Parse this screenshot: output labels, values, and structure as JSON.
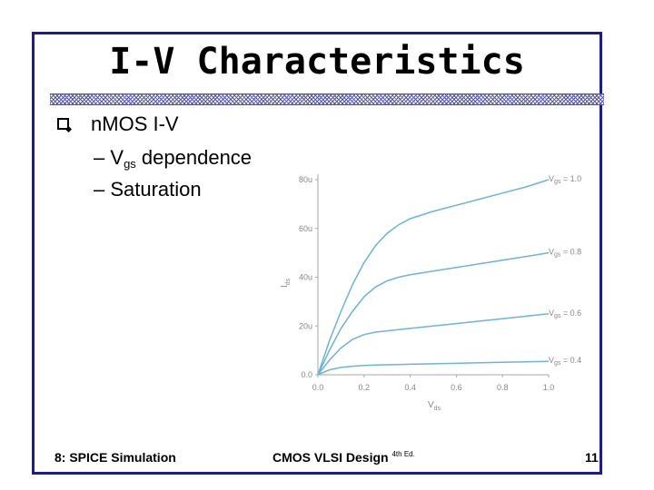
{
  "slide": {
    "title": "I-V Characteristics",
    "bullet1": "n",
    "bullet1_mos": "MOS I-V",
    "bullet2_dash": "–",
    "bullet2_v": "V",
    "bullet2_sub": "gs",
    "bullet2_rest": "dependence",
    "bullet3": "– Saturation"
  },
  "footer": {
    "left": "8: SPICE Simulation",
    "center": "CMOS VLSI Design",
    "center_sup": "4th Ed.",
    "right": "11"
  },
  "colors": {
    "frame": "#1a1aa0",
    "curve": "#6ab5d8",
    "tick": "#888888"
  },
  "chart_data": {
    "type": "line",
    "xlabel_main": "V",
    "xlabel_sub": "ds",
    "ylabel_main": "I",
    "ylabel_sub": "ds",
    "xlim": [
      0,
      1.0
    ],
    "ylim": [
      0,
      80
    ],
    "x_ticks": [
      "0.0",
      "0.2",
      "0.4",
      "0.6",
      "0.8",
      "1.0"
    ],
    "y_ticks": [
      "0.0",
      "20u",
      "40u",
      "60u",
      "80u"
    ],
    "x": [
      0.0,
      0.05,
      0.1,
      0.15,
      0.2,
      0.25,
      0.3,
      0.35,
      0.4,
      0.5,
      0.6,
      0.7,
      0.8,
      0.9,
      1.0
    ],
    "series": [
      {
        "name": "Vgs = 1.0",
        "label_main": "V",
        "label_sub": "gs",
        "label_rest": " = 1.0",
        "values": [
          0,
          14,
          26,
          37,
          46,
          53,
          58,
          61.5,
          64,
          67,
          69.5,
          72,
          74.5,
          77,
          80
        ]
      },
      {
        "name": "Vgs = 0.8",
        "label_main": "V",
        "label_sub": "gs",
        "label_rest": " = 0.8",
        "values": [
          0,
          10,
          19,
          26,
          32,
          36,
          38.5,
          40,
          41,
          42.5,
          44,
          45.5,
          47,
          48.5,
          50
        ]
      },
      {
        "name": "Vgs = 0.6",
        "label_main": "V",
        "label_sub": "gs",
        "label_rest": " = 0.6",
        "values": [
          0,
          6,
          11,
          14.5,
          16.5,
          17.5,
          18,
          18.5,
          19,
          20,
          21,
          22,
          23,
          24,
          25
        ]
      },
      {
        "name": "Vgs = 0.4",
        "label_main": "V",
        "label_sub": "gs",
        "label_rest": " = 0.4",
        "values": [
          0,
          2,
          3,
          3.5,
          3.8,
          4,
          4.1,
          4.2,
          4.3,
          4.5,
          4.7,
          4.9,
          5.1,
          5.3,
          5.5
        ]
      }
    ]
  }
}
